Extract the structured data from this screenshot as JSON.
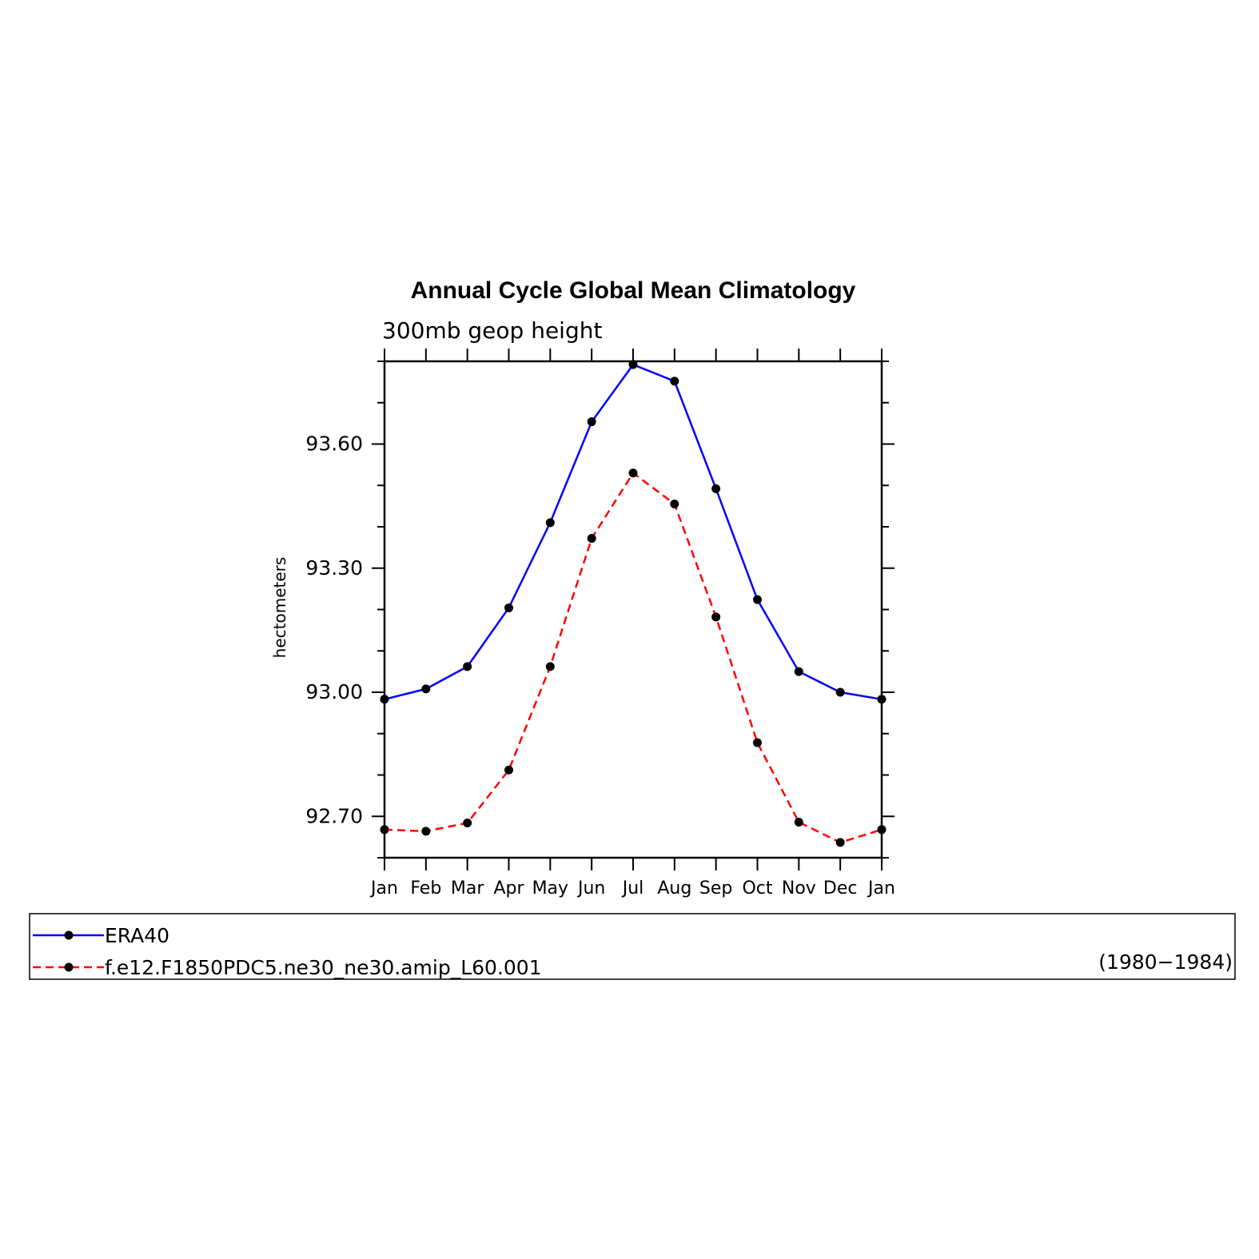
{
  "chart_data": {
    "type": "line",
    "title": "Annual Cycle Global Mean Climatology",
    "subtitle": "300mb geop height",
    "ylabel": "hectometers",
    "xlabel": "",
    "categories": [
      "Jan",
      "Feb",
      "Mar",
      "Apr",
      "May",
      "Jun",
      "Jul",
      "Aug",
      "Sep",
      "Oct",
      "Nov",
      "Dec",
      "Jan"
    ],
    "ylim": [
      92.6,
      93.8
    ],
    "yticks": [
      92.7,
      93.0,
      93.3,
      93.6
    ],
    "ytick_labels": [
      "92.70",
      "93.00",
      "93.30",
      "93.60"
    ],
    "series": [
      {
        "name": "ERA40",
        "color": "#0000ff",
        "style": "solid",
        "values": [
          92.983,
          93.008,
          93.062,
          93.204,
          93.41,
          93.654,
          93.792,
          93.752,
          93.492,
          93.224,
          93.05,
          93.0,
          92.983
        ]
      },
      {
        "name": "f.e12.F1850PDC5.ne30_ne30.amip_L60.001",
        "color": "#ff0000",
        "style": "dashed",
        "values": [
          92.668,
          92.664,
          92.684,
          92.812,
          93.062,
          93.372,
          93.53,
          93.455,
          93.182,
          92.878,
          92.686,
          92.637,
          92.668
        ]
      }
    ],
    "legend": {
      "placement": "bottom",
      "note": "(1980−1984)"
    },
    "grid": false
  }
}
